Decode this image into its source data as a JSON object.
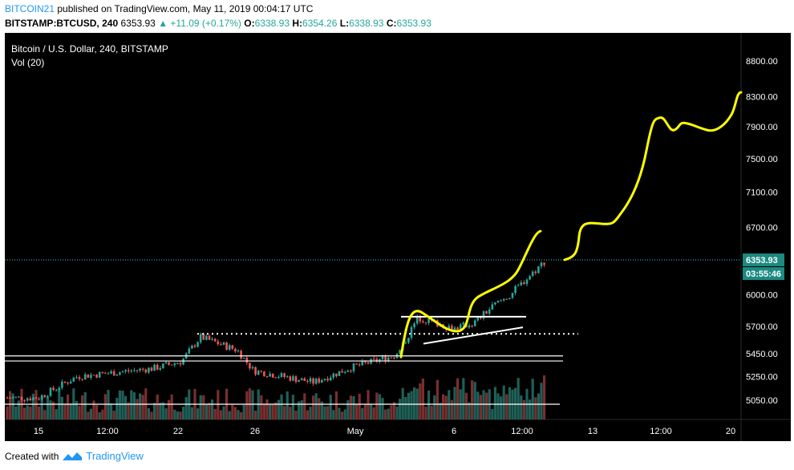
{
  "header": {
    "author": "BITCOIN21",
    "published_text": " published on TradingView.com, May 11, 2019 00:04:17 UTC",
    "symbol": "BITSTAMP:BTCUSD, 240",
    "last": "6353.93",
    "change": "▲ +11.09 (+0.17%)",
    "o_label": "O:",
    "o_val": "6338.93",
    "h_label": "H:",
    "h_val": "6354.26",
    "l_label": "L:",
    "l_val": "6338.93",
    "c_label": "C:",
    "c_val": "6353.93"
  },
  "footer": {
    "created_with": "Created with",
    "brand": "TradingView"
  },
  "colors": {
    "up": "#26a69a",
    "down": "#ef5350",
    "background": "#000000",
    "drawing": "#ffff00",
    "price_line": "#4dd0e1"
  },
  "chart_data": {
    "type": "candlestick",
    "title": "Bitcoin / U.S. Dollar, 240, BITSTAMP",
    "volume_label": "Vol (20)",
    "price_scale": "log",
    "ylim": [
      4850,
      9050
    ],
    "y_ticks": [
      "8800.00",
      "8300.00",
      "7900.00",
      "7500.00",
      "7100.00",
      "6700.00",
      "6000.00",
      "5700.00",
      "5450.00",
      "5250.00",
      "5050.00"
    ],
    "x_ticks": [
      "15",
      "12:00",
      "22",
      "26",
      "May",
      "6",
      "12:00",
      "13",
      "12:00",
      "20"
    ],
    "last_price_label": "6353.93",
    "countdown_label": "03:55:46",
    "anchors": [
      {
        "date": "15",
        "price": 5070
      },
      {
        "date": "17",
        "price": 5250
      },
      {
        "date": "21",
        "price": 5320
      },
      {
        "date": "22",
        "price": 5380
      },
      {
        "date": "23",
        "price": 5600
      },
      {
        "date": "25",
        "price": 5480
      },
      {
        "date": "26",
        "price": 5300
      },
      {
        "date": "29",
        "price": 5200
      },
      {
        "date": "May 1",
        "price": 5330
      },
      {
        "date": "May 3",
        "price": 5440
      },
      {
        "date": "May 4",
        "price": 5780
      },
      {
        "date": "May 6",
        "price": 5680
      },
      {
        "date": "May 7",
        "price": 5730
      },
      {
        "date": "May 8",
        "price": 5900
      },
      {
        "date": "May 9",
        "price": 6000
      },
      {
        "date": "May 10",
        "price": 6354
      }
    ],
    "levels": [
      {
        "price": 5630,
        "style": "dotted",
        "color": "#ffffff"
      },
      {
        "price": 5430,
        "style": "solid",
        "color": "#ffffff"
      },
      {
        "price": 5385,
        "style": "solid",
        "color": "#ffffff"
      },
      {
        "price": 5790,
        "style": "solid",
        "color": "#ffffff"
      }
    ],
    "projection": [
      6353,
      6430,
      6720,
      6800,
      6750,
      7050,
      7400,
      8000,
      7850,
      7950,
      7850,
      8000,
      8300
    ]
  }
}
